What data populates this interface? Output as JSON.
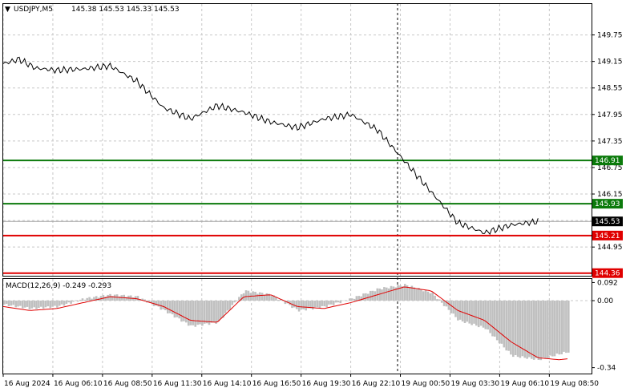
{
  "header": {
    "symbol": "USDJPY,M5",
    "ohlc": "145.38 145.53 145.33 145.53"
  },
  "indicator": {
    "label": "MACD(12,26,9) -0.249 -0.293"
  },
  "colors": {
    "price_line": "#000000",
    "support_green": "#0b7a0b",
    "resistance_red": "#e00000",
    "histogram": "#c0c0c0",
    "signal_line": "#e00000",
    "grid": "#c8c8c8",
    "cursor_badge": "#000000"
  },
  "chart_data": [
    {
      "type": "line",
      "name": "price",
      "title": "USDJPY,M5",
      "yticks": [
        "149.75",
        "149.15",
        "148.55",
        "147.95",
        "147.35",
        "146.75",
        "146.15",
        "145.55",
        "144.95"
      ],
      "ytick_values": [
        149.75,
        149.15,
        148.55,
        147.95,
        147.35,
        146.75,
        146.15,
        145.55,
        144.95
      ],
      "ylim": [
        144.3,
        150.45
      ],
      "xticks": [
        "16 Aug 2024",
        "16 Aug 06:10",
        "16 Aug 08:50",
        "16 Aug 11:30",
        "16 Aug 14:10",
        "16 Aug 16:50",
        "16 Aug 19:30",
        "16 Aug 22:10",
        "19 Aug 00:50",
        "19 Aug 03:30",
        "19 Aug 06:10",
        "19 Aug 08:50"
      ],
      "x": [
        0,
        0.3,
        0.6,
        1,
        1.5,
        2,
        2.5,
        3,
        3.5,
        4,
        4.5,
        5,
        5.5,
        6,
        6.5,
        7,
        7.5,
        8,
        8.5,
        9,
        9.5,
        10,
        10.4,
        10.7,
        11
      ],
      "values": [
        149.1,
        149.2,
        149.0,
        148.95,
        148.98,
        149.05,
        148.7,
        148.1,
        147.85,
        148.15,
        148.0,
        147.78,
        147.65,
        147.85,
        147.95,
        147.6,
        146.9,
        146.2,
        145.5,
        145.27,
        145.45,
        145.53,
        145.53,
        145.53,
        145.53
      ],
      "levels": [
        {
          "value": 146.91,
          "label": "146.91",
          "color": "#0b7a0b"
        },
        {
          "value": 145.93,
          "label": "145.93",
          "color": "#0b7a0b"
        },
        {
          "value": 145.21,
          "label": "145.21",
          "color": "#e00000"
        },
        {
          "value": 144.36,
          "label": "144.36",
          "color": "#e00000"
        }
      ],
      "current": {
        "value": 145.53,
        "label": "145.53"
      },
      "grid": true
    },
    {
      "type": "bar",
      "name": "MACD",
      "title": "MACD(12,26,9) -0.249 -0.293",
      "yticks": [
        "0.092",
        "0.00",
        "-0.34"
      ],
      "ytick_values": [
        0.092,
        0.0,
        -0.34
      ],
      "ylim": [
        -0.37,
        0.11
      ],
      "x": [
        0,
        0.5,
        1,
        1.5,
        2,
        2.5,
        3,
        3.5,
        4,
        4.5,
        5,
        5.5,
        6,
        6.5,
        7,
        7.5,
        8,
        8.5,
        9,
        9.5,
        10,
        10.4,
        10.7,
        11
      ],
      "histogram": [
        -0.02,
        -0.04,
        -0.03,
        0.01,
        0.03,
        0.02,
        -0.05,
        -0.13,
        -0.11,
        0.05,
        0.03,
        -0.05,
        -0.03,
        0.01,
        0.06,
        0.08,
        0.04,
        -0.1,
        -0.14,
        -0.28,
        -0.3,
        -0.27,
        -0.25,
        -0.249
      ],
      "signal": [
        -0.03,
        -0.05,
        -0.04,
        -0.01,
        0.02,
        0.01,
        -0.03,
        -0.1,
        -0.11,
        0.02,
        0.03,
        -0.03,
        -0.04,
        -0.01,
        0.03,
        0.07,
        0.05,
        -0.05,
        -0.1,
        -0.21,
        -0.29,
        -0.3,
        -0.29,
        -0.293
      ],
      "grid": true
    }
  ]
}
